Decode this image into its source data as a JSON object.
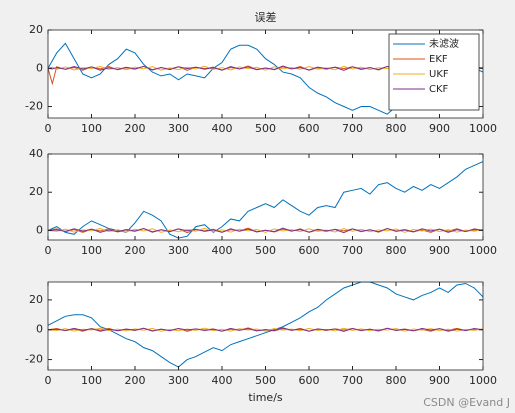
{
  "chart_data": [
    {
      "type": "line",
      "title": "误差",
      "legend": "northeast",
      "x": [
        0,
        10,
        20,
        40,
        60,
        80,
        100,
        120,
        140,
        160,
        180,
        200,
        220,
        240,
        260,
        280,
        300,
        320,
        340,
        360,
        380,
        400,
        420,
        440,
        460,
        480,
        500,
        520,
        540,
        560,
        580,
        600,
        620,
        640,
        660,
        680,
        700,
        720,
        740,
        760,
        780,
        800,
        820,
        840,
        860,
        880,
        900,
        920,
        940,
        960,
        980,
        1000
      ],
      "xlim": [
        0,
        1000
      ],
      "xticks": [
        0,
        100,
        200,
        300,
        400,
        500,
        600,
        700,
        800,
        900,
        1000
      ],
      "ylim": [
        -26,
        20
      ],
      "yticks": [
        -20,
        0,
        20
      ],
      "series": [
        {
          "name": "未滤波",
          "color": "#0072bd",
          "values": [
            0,
            4,
            8,
            13,
            5,
            -3,
            -5,
            -3,
            2,
            5,
            10,
            8,
            2,
            -2,
            -4,
            -3,
            -6,
            -3,
            -4,
            -5,
            0,
            3,
            10,
            12,
            12,
            10,
            5,
            2,
            -2,
            -3,
            -5,
            -10,
            -13,
            -15,
            -18,
            -20,
            -22,
            -20,
            -20,
            -22,
            -24,
            -20,
            -16,
            -5,
            0,
            5,
            9,
            12,
            10,
            5,
            0,
            -2
          ]
        },
        {
          "name": "EKF",
          "color": "#d95319",
          "values": [
            0,
            -8,
            0.8,
            -0.6,
            0.4,
            -1,
            0.7,
            -0.3,
            0.9,
            -0.8,
            0.2,
            -0.5,
            1,
            -0.7,
            0.3,
            -0.4,
            0.8,
            -1.1,
            0.5,
            -0.2,
            0.6,
            -0.9,
            0.4,
            -0.3,
            1.2,
            -0.6,
            0.1,
            -0.8,
            0.7,
            -0.4,
            0.9,
            -1,
            0.3,
            -0.5,
            0.6,
            -0.2,
            0.8,
            -0.7,
            0.4,
            -0.9,
            1,
            -0.3,
            0.5,
            -0.6,
            0.2,
            -1,
            0.7,
            -0.4,
            0.9,
            -0.5,
            0.3,
            -0.1
          ]
        },
        {
          "name": "UKF",
          "color": "#edb120",
          "values": [
            0,
            0.5,
            -0.5,
            0.7,
            -0.9,
            0.3,
            -0.2,
            1,
            -0.6,
            0.4,
            -0.8,
            0.6,
            -0.3,
            0.9,
            -1,
            0.2,
            -0.7,
            0.5,
            -0.4,
            1.1,
            -0.6,
            0.3,
            -0.9,
            0.7,
            -0.2,
            0.5,
            -1,
            0.8,
            -0.3,
            0.4,
            -0.6,
            0.9,
            -0.5,
            0.2,
            -0.8,
            1,
            -0.4,
            0.6,
            -0.7,
            0.3,
            -0.2,
            0.8,
            -1,
            0.5,
            -0.3,
            0.7,
            -0.6,
            0.4,
            -0.9,
            0.2,
            -0.4,
            0.6
          ]
        },
        {
          "name": "CKF",
          "color": "#7e2f8e",
          "values": [
            -0.1,
            -0.3,
            0.3,
            -0.5,
            0.9,
            -0.4,
            0.7,
            -1,
            0.2,
            -0.6,
            0.5,
            -0.3,
            1,
            -0.9,
            0.4,
            -0.7,
            0.8,
            -0.2,
            0.6,
            -0.5,
            0.3,
            -1,
            0.9,
            -0.4,
            0.7,
            -0.8,
            0.1,
            -0.6,
            1.2,
            -0.3,
            0.4,
            -0.9,
            0.6,
            -0.2,
            0.5,
            -1.1,
            0.8,
            -0.4,
            0.3,
            -0.7,
            1,
            -0.5,
            0.2,
            -0.8,
            0.9,
            -0.3,
            0.7,
            -1,
            0.4,
            -0.6,
            0.8,
            0
          ]
        }
      ]
    },
    {
      "type": "line",
      "x": [
        0,
        20,
        40,
        60,
        80,
        100,
        120,
        140,
        160,
        180,
        200,
        220,
        240,
        260,
        280,
        300,
        320,
        340,
        360,
        380,
        400,
        420,
        440,
        460,
        480,
        500,
        520,
        540,
        560,
        580,
        600,
        620,
        640,
        660,
        680,
        700,
        720,
        740,
        760,
        780,
        800,
        820,
        840,
        860,
        880,
        900,
        920,
        940,
        960,
        980,
        1000
      ],
      "xlim": [
        0,
        1000
      ],
      "xticks": [
        0,
        100,
        200,
        300,
        400,
        500,
        600,
        700,
        800,
        900,
        1000
      ],
      "ylim": [
        -5,
        40
      ],
      "yticks": [
        0,
        20,
        40
      ],
      "series": [
        {
          "color": "#0072bd",
          "values": [
            0,
            2,
            -1,
            -2,
            2,
            5,
            3,
            1,
            0,
            -1,
            4,
            10,
            8,
            5,
            -2,
            -4,
            -3,
            2,
            3,
            -1,
            2,
            6,
            5,
            10,
            12,
            14,
            12,
            16,
            13,
            10,
            8,
            12,
            13,
            12,
            20,
            21,
            22,
            19,
            24,
            25,
            22,
            20,
            23,
            21,
            24,
            22,
            25,
            28,
            32,
            34,
            36
          ]
        },
        {
          "color": "#d95319",
          "values": [
            0,
            0.8,
            -0.6,
            0.4,
            -1,
            0.7,
            -0.3,
            0.9,
            -0.8,
            0.2,
            -0.5,
            1,
            -0.7,
            0.3,
            -0.4,
            0.8,
            -1.1,
            0.5,
            -0.2,
            0.6,
            -0.9,
            0.4,
            -0.3,
            1.2,
            -0.6,
            0.1,
            -0.8,
            0.7,
            -0.4,
            0.9,
            -1,
            0.3,
            -0.5,
            0.6,
            -0.2,
            0.8,
            -0.7,
            0.4,
            -0.9,
            1,
            -0.3,
            0.5,
            -0.6,
            0.2,
            -1,
            0.7,
            -0.4,
            0.9,
            -0.5,
            0.3,
            -0.1
          ]
        },
        {
          "color": "#edb120",
          "values": [
            0,
            -0.5,
            0.7,
            -0.9,
            0.3,
            -0.2,
            1,
            -0.6,
            0.4,
            -0.8,
            0.6,
            -0.3,
            0.9,
            -1,
            0.2,
            -0.7,
            0.5,
            -0.4,
            1.1,
            -0.6,
            0.3,
            -0.9,
            0.7,
            -0.2,
            0.5,
            -1,
            0.8,
            -0.3,
            0.4,
            -0.6,
            0.9,
            -0.5,
            0.2,
            -0.8,
            1,
            -0.4,
            0.6,
            -0.7,
            0.3,
            -0.2,
            0.8,
            -1,
            0.5,
            -0.3,
            0.7,
            -0.6,
            0.4,
            -0.9,
            0.2,
            -0.4,
            0.6
          ]
        },
        {
          "color": "#7e2f8e",
          "values": [
            -0.1,
            0.3,
            -0.5,
            0.9,
            -0.4,
            0.7,
            -1,
            0.2,
            -0.6,
            0.5,
            -0.3,
            1,
            -0.9,
            0.4,
            -0.7,
            0.8,
            -0.2,
            0.6,
            -0.5,
            0.3,
            -1,
            0.9,
            -0.4,
            0.7,
            -0.8,
            0.1,
            -0.6,
            1.2,
            -0.3,
            0.4,
            -0.9,
            0.6,
            -0.2,
            0.5,
            -1.1,
            0.8,
            -0.4,
            0.3,
            -0.7,
            1,
            -0.5,
            0.2,
            -0.8,
            0.9,
            -0.3,
            0.7,
            -1,
            0.4,
            -0.6,
            0.8,
            0
          ]
        }
      ]
    },
    {
      "type": "line",
      "xlabel": "time/s",
      "x": [
        0,
        20,
        40,
        60,
        80,
        100,
        120,
        140,
        160,
        180,
        200,
        220,
        240,
        260,
        280,
        300,
        320,
        340,
        360,
        380,
        400,
        420,
        440,
        460,
        480,
        500,
        520,
        540,
        560,
        580,
        600,
        620,
        640,
        660,
        680,
        700,
        720,
        740,
        760,
        780,
        800,
        820,
        840,
        860,
        880,
        900,
        920,
        940,
        960,
        980,
        1000
      ],
      "xlim": [
        0,
        1000
      ],
      "xticks": [
        0,
        100,
        200,
        300,
        400,
        500,
        600,
        700,
        800,
        900,
        1000
      ],
      "ylim": [
        -27,
        32
      ],
      "yticks": [
        -20,
        0,
        20
      ],
      "series": [
        {
          "color": "#0072bd",
          "values": [
            3,
            6,
            9,
            10,
            10,
            8,
            2,
            0,
            -3,
            -6,
            -8,
            -12,
            -14,
            -18,
            -22,
            -25,
            -20,
            -18,
            -15,
            -12,
            -14,
            -10,
            -8,
            -6,
            -4,
            -2,
            0,
            2,
            5,
            8,
            12,
            15,
            20,
            24,
            28,
            30,
            32,
            32,
            30,
            28,
            24,
            22,
            20,
            23,
            25,
            28,
            25,
            30,
            31,
            28,
            22
          ]
        },
        {
          "color": "#d95319",
          "values": [
            0,
            0.8,
            -0.6,
            0.4,
            -1,
            0.7,
            -0.3,
            0.9,
            -0.8,
            0.2,
            -0.5,
            1,
            -0.7,
            0.3,
            -0.4,
            0.8,
            -1.1,
            0.5,
            -0.2,
            0.6,
            -0.9,
            0.4,
            -0.3,
            1.2,
            -0.6,
            0.1,
            -0.8,
            0.7,
            -0.4,
            0.9,
            -1,
            0.3,
            -0.5,
            0.6,
            -0.2,
            0.8,
            -0.7,
            0.4,
            -0.9,
            1,
            -0.3,
            0.5,
            -0.6,
            0.2,
            -1,
            0.7,
            -0.4,
            0.9,
            -0.5,
            0.3,
            -0.1
          ]
        },
        {
          "color": "#edb120",
          "values": [
            0,
            -0.5,
            0.7,
            -0.9,
            0.3,
            -0.2,
            1,
            -0.6,
            0.4,
            -0.8,
            0.6,
            -0.3,
            0.9,
            -1,
            0.2,
            -0.7,
            0.5,
            -0.4,
            1.1,
            -0.6,
            0.3,
            -0.9,
            0.7,
            -0.2,
            0.5,
            -1,
            0.8,
            -0.3,
            0.4,
            -0.6,
            0.9,
            -0.5,
            0.2,
            -0.8,
            1,
            -0.4,
            0.6,
            -0.7,
            0.3,
            -0.2,
            0.8,
            -1,
            0.5,
            -0.3,
            0.7,
            -0.6,
            0.4,
            -0.9,
            0.2,
            -0.4,
            0.6
          ]
        },
        {
          "color": "#7e2f8e",
          "values": [
            -0.1,
            0.3,
            -0.5,
            0.9,
            -0.4,
            0.7,
            -1,
            0.2,
            -0.6,
            0.5,
            -0.3,
            1,
            -0.9,
            0.4,
            -0.7,
            0.8,
            -0.2,
            0.6,
            -0.5,
            0.3,
            -1,
            0.9,
            -0.4,
            0.7,
            -0.8,
            0.1,
            -0.6,
            1.2,
            -0.3,
            0.4,
            -0.9,
            0.6,
            -0.2,
            0.5,
            -1.1,
            0.8,
            -0.4,
            0.3,
            -0.7,
            1,
            -0.5,
            0.2,
            -0.8,
            0.9,
            -0.3,
            0.7,
            -1,
            0.4,
            -0.6,
            0.8,
            0
          ]
        }
      ]
    }
  ],
  "watermark": "CSDN @Evand J"
}
